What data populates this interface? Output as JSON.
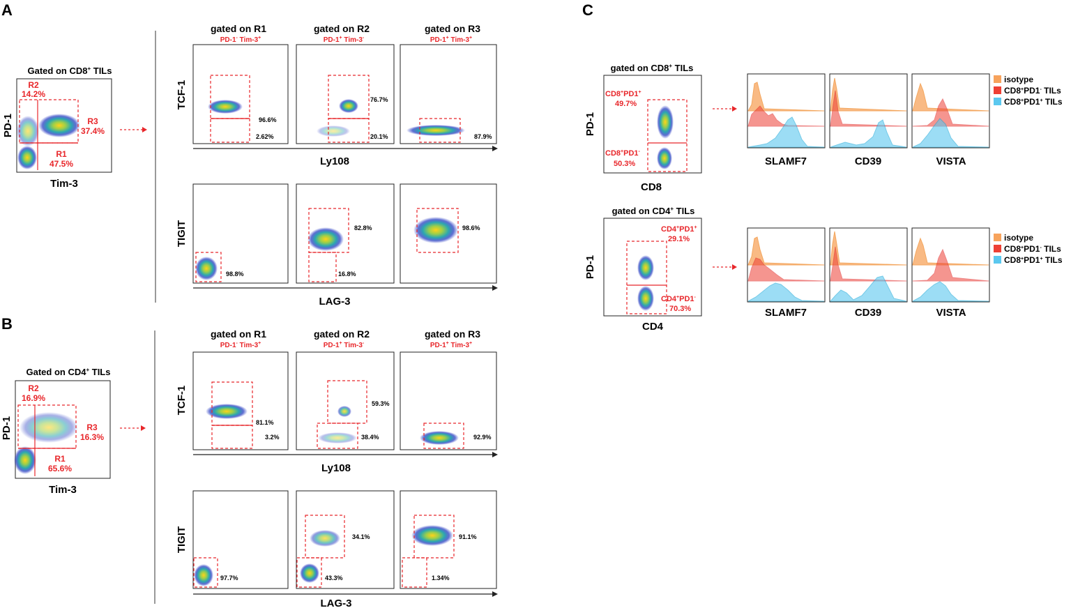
{
  "panelA": {
    "letter": "A",
    "overview": {
      "title_pre": "Gated on CD8",
      "title_sup": "+",
      "title_post": " TILs",
      "yaxis": "PD-1",
      "xaxis": "Tim-3",
      "R2_name": "R2",
      "R2_value": "14.2%",
      "R3_name": "R3",
      "R3_value": "37.4%",
      "R1_name": "R1",
      "R1_value": "47.5%"
    },
    "headers": [
      {
        "title": "gated on R1",
        "sub1": "PD-1",
        "sup1": "-",
        "sub2": " Tim-3",
        "sup2": "+"
      },
      {
        "title": "gated on R2",
        "sub1": "PD-1",
        "sup1": "+",
        "sub2": " Tim-3",
        "sup2": "-"
      },
      {
        "title": "gated on R3",
        "sub1": "PD-1",
        "sup1": "+",
        "sub2": " Tim-3",
        "sup2": "+"
      }
    ],
    "row1": {
      "ylabel": "TCF-1",
      "xlabel": "Ly108",
      "plots": [
        {
          "top": "96.6%",
          "bottom": "2.62%"
        },
        {
          "top": "76.7%",
          "bottom": "20.1%"
        },
        {
          "value": "87.9%"
        }
      ]
    },
    "row2": {
      "ylabel": "TIGIT",
      "xlabel": "LAG-3",
      "plots": [
        {
          "value": "98.8%"
        },
        {
          "top": "82.8%",
          "bottom": "16.8%"
        },
        {
          "value": "98.6%"
        }
      ]
    }
  },
  "panelB": {
    "letter": "B",
    "overview": {
      "title_pre": "Gated on CD4",
      "title_sup": "+",
      "title_post": " TILs",
      "yaxis": "PD-1",
      "xaxis": "Tim-3",
      "R2_name": "R2",
      "R2_value": "16.9%",
      "R3_name": "R3",
      "R3_value": "16.3%",
      "R1_name": "R1",
      "R1_value": "65.6%"
    },
    "headers": [
      {
        "title": "gated on R1",
        "sub1": "PD-1",
        "sup1": "-",
        "sub2": " Tim-3",
        "sup2": "+"
      },
      {
        "title": "gated on R2",
        "sub1": "PD-1",
        "sup1": "+",
        "sub2": " Tim-3",
        "sup2": "-"
      },
      {
        "title": "gated on R3",
        "sub1": "PD-1",
        "sup1": "+",
        "sub2": " Tim-3",
        "sup2": "+"
      }
    ],
    "row1": {
      "ylabel": "TCF-1",
      "xlabel": "Ly108",
      "plots": [
        {
          "top": "81.1%",
          "bottom": "3.2%"
        },
        {
          "top": "59.3%",
          "bottom": "38.4%"
        },
        {
          "value": "92.9%"
        }
      ]
    },
    "row2": {
      "ylabel": "TIGIT",
      "xlabel": "LAG-3",
      "plots": [
        {
          "value": "97.7%"
        },
        {
          "top": "34.1%",
          "bottom": "43.3%"
        },
        {
          "top": "91.1%",
          "bottom": "1.34%"
        }
      ]
    }
  },
  "panelC": {
    "letter": "C",
    "cd8": {
      "title_pre": "gated on CD8",
      "title_sup": "+",
      "title_post": " TILs",
      "yaxis": "PD-1",
      "xaxis": "CD8",
      "upper_pre": "CD8",
      "upper_sup1": "+",
      "upper_mid": "PD1",
      "upper_sup2": "+",
      "upper_value": "49.7%",
      "lower_pre": "CD8",
      "lower_sup1": "+",
      "lower_mid": "PD1",
      "lower_sup2": "-",
      "lower_value": "50.3%"
    },
    "cd4": {
      "title_pre": "gated on CD4",
      "title_sup": "+",
      "title_post": " TILs",
      "yaxis": "PD-1",
      "xaxis": "CD4",
      "upper_pre": "CD4",
      "upper_sup1": "+",
      "upper_mid": "PD1",
      "upper_sup2": "+",
      "upper_value": "29.1%",
      "lower_pre": "CD4",
      "lower_sup1": "+",
      "lower_mid": "PD1",
      "lower_sup2": "-",
      "lower_value": "70.3%"
    },
    "histogram_markers": [
      "SLAMF7",
      "CD39",
      "VISTA"
    ],
    "legend_top": [
      {
        "pre": "isotype",
        "s1": "",
        "mid": "",
        "s2": "",
        "post": ""
      },
      {
        "pre": "CD8",
        "s1": "+",
        "mid": "PD1",
        "s2": "-",
        "post": " TILs"
      },
      {
        "pre": "CD8",
        "s1": "+",
        "mid": "PD1",
        "s2": "+",
        "post": " TILs"
      }
    ],
    "legend_bottom": [
      {
        "pre": "isotype",
        "s1": "",
        "mid": "",
        "s2": "",
        "post": ""
      },
      {
        "pre": "CD8",
        "s1": "+",
        "mid": "PD1",
        "s2": "-",
        "post": " TILs"
      },
      {
        "pre": "CD8",
        "s1": "+",
        "mid": "PD1",
        "s2": "+",
        "post": " TILs"
      }
    ]
  },
  "colors": {
    "gate_red": "#e8262a",
    "isotype": "#f7a35c",
    "pd1_neg": "#ee4035",
    "pd1_pos": "#5bc8ef"
  }
}
